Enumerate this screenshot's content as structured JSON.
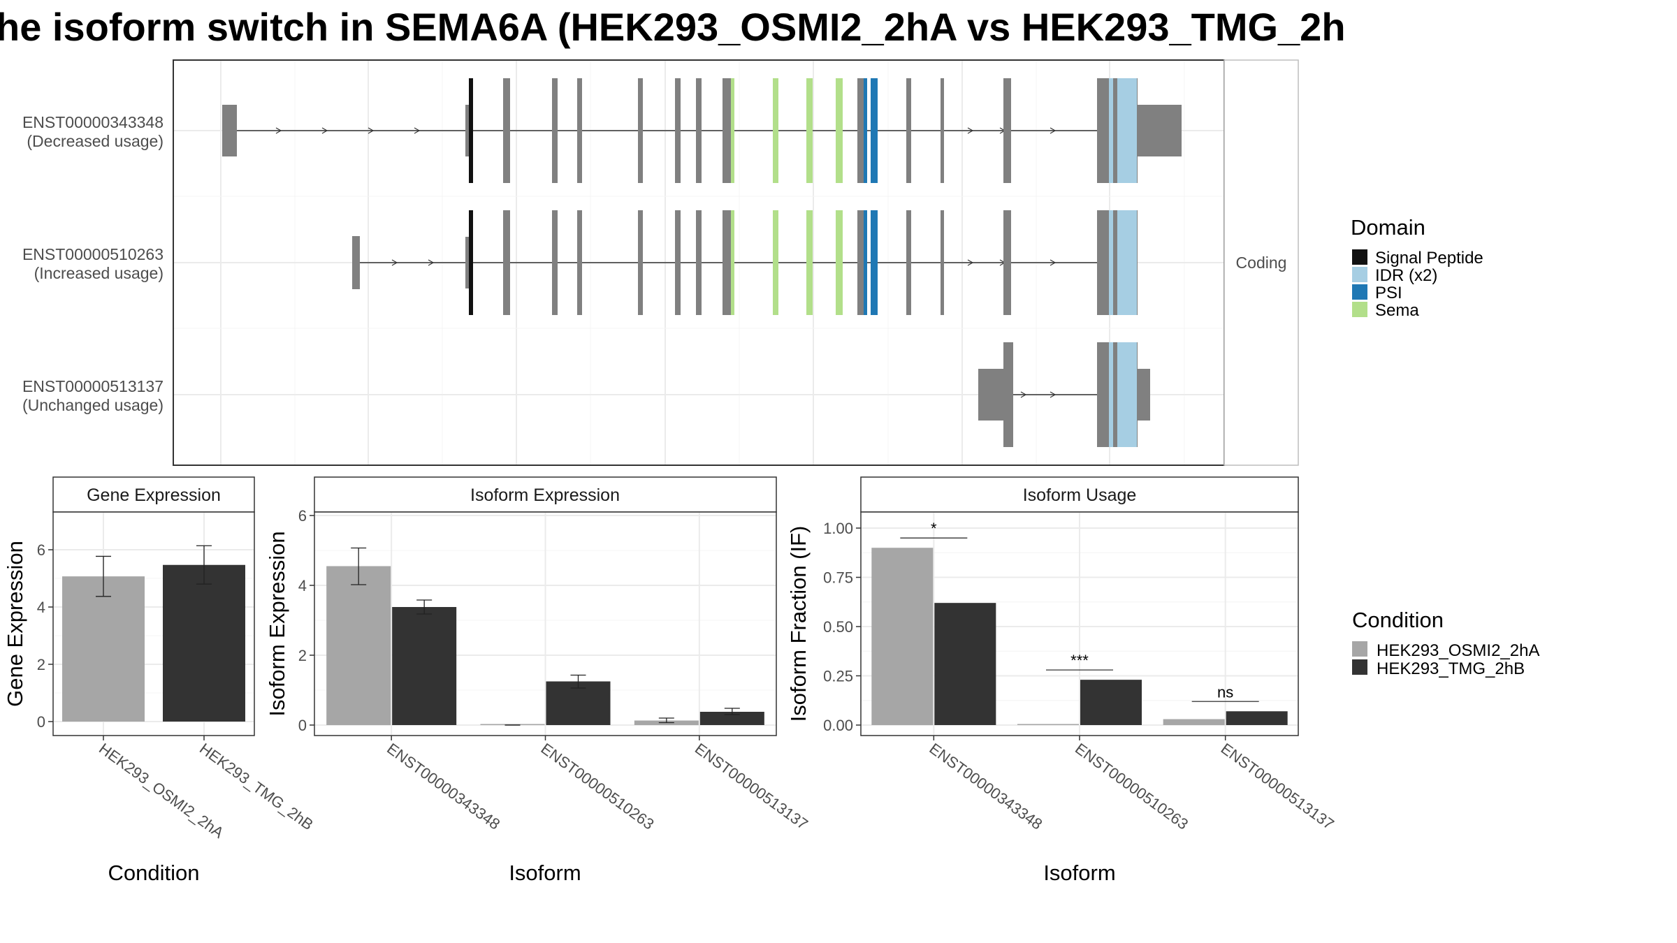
{
  "title": "he isoform switch in SEMA6A (HEK293_OSMI2_2hA vs HEK293_TMG_2h",
  "colors": {
    "exon": "#808080",
    "signal_peptide": "#111111",
    "idr": "#a6cee3",
    "psi": "#1f78b4",
    "sema": "#b2df8a",
    "cond_a": "#a6a6a6",
    "cond_b": "#333333"
  },
  "chart_data": [
    {
      "type": "transcript-structure",
      "strip": "Coding",
      "transcripts": [
        {
          "id": "ENST00000343348",
          "usage": "(Decreased usage)"
        },
        {
          "id": "ENST00000510263",
          "usage": "(Increased usage)"
        },
        {
          "id": "ENST00000513137",
          "usage": "(Unchanged usage)"
        }
      ],
      "legend": {
        "title": "Domain",
        "items": [
          {
            "label": "Signal Peptide",
            "color": "#111111"
          },
          {
            "label": "IDR (x2)",
            "color": "#a6cee3"
          },
          {
            "label": "PSI",
            "color": "#1f78b4"
          },
          {
            "label": "Sema",
            "color": "#b2df8a"
          }
        ]
      }
    },
    {
      "type": "bar",
      "title": "Gene Expression",
      "xlabel": "Condition",
      "ylabel": "Gene Expression",
      "ylim": [
        0,
        7.5
      ],
      "yticks": [
        "0",
        "2",
        "4",
        "6"
      ],
      "categories": [
        "HEK293_OSMI2_2hA",
        "HEK293_TMG_2hB"
      ],
      "values": [
        5.07,
        5.47
      ],
      "error": [
        [
          4.37,
          5.77
        ],
        [
          4.8,
          6.14
        ]
      ]
    },
    {
      "type": "bar",
      "title": "Isoform Expression",
      "xlabel": "Isoform",
      "ylabel": "Isoform Expression",
      "ylim": [
        0,
        6.2
      ],
      "yticks": [
        "0",
        "2",
        "4",
        "6"
      ],
      "categories": [
        "ENST00000343348",
        "ENST00000510263",
        "ENST00000513137"
      ],
      "series": [
        {
          "name": "HEK293_OSMI2_2hA",
          "values": [
            4.55,
            0.0,
            0.13
          ],
          "error": [
            [
              4.02,
              5.07
            ],
            [
              0.0,
              0.0
            ],
            [
              0.07,
              0.2
            ]
          ]
        },
        {
          "name": "HEK293_TMG_2hB",
          "values": [
            3.38,
            1.25,
            0.38
          ],
          "error": [
            [
              3.18,
              3.58
            ],
            [
              1.06,
              1.43
            ],
            [
              0.3,
              0.48
            ]
          ]
        }
      ]
    },
    {
      "type": "bar",
      "title": "Isoform Usage",
      "xlabel": "Isoform",
      "ylabel": "Isoform Fraction (IF)",
      "ylim": [
        0,
        1.1
      ],
      "yticks": [
        "0.00",
        "0.25",
        "0.50",
        "0.75",
        "1.00"
      ],
      "categories": [
        "ENST00000343348",
        "ENST00000510263",
        "ENST00000513137"
      ],
      "series": [
        {
          "name": "HEK293_OSMI2_2hA",
          "values": [
            0.9,
            0.0,
            0.03
          ]
        },
        {
          "name": "HEK293_TMG_2hB",
          "values": [
            0.62,
            0.23,
            0.07
          ]
        }
      ],
      "significance": [
        "*",
        "***",
        "ns"
      ],
      "legend": {
        "title": "Condition",
        "items": [
          "HEK293_OSMI2_2hA",
          "HEK293_TMG_2hB"
        ]
      }
    }
  ]
}
